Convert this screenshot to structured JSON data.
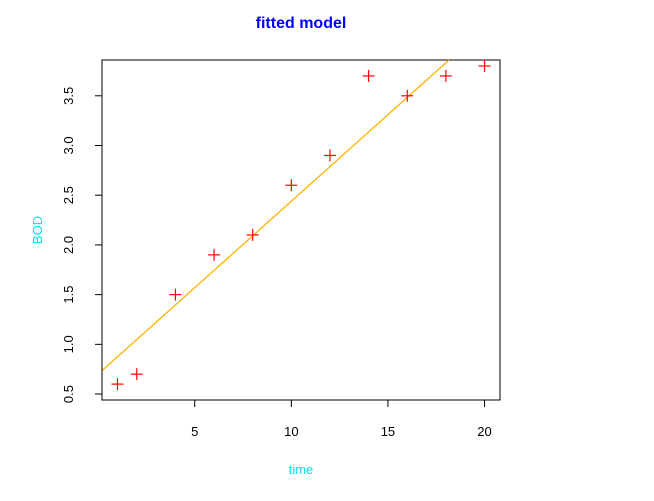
{
  "chart_data": {
    "type": "scatter",
    "title": "fitted model",
    "xlabel": "time",
    "ylabel": "BOD",
    "xlim": [
      0.2,
      20.8
    ],
    "ylim": [
      0.44,
      3.86
    ],
    "x_ticks": [
      5,
      10,
      15,
      20
    ],
    "y_ticks": [
      0.5,
      1.0,
      1.5,
      2.0,
      2.5,
      3.0,
      3.5
    ],
    "x_tick_labels": [
      "5",
      "10",
      "15",
      "20"
    ],
    "y_tick_labels": [
      "0.5",
      "1.0",
      "1.5",
      "2.0",
      "2.5",
      "3.0",
      "3.5"
    ],
    "grid": false,
    "series": [
      {
        "marker": "+",
        "color": "#ff0000",
        "x": [
          1,
          2,
          4,
          6,
          8,
          10,
          12,
          14,
          16,
          18,
          20
        ],
        "y": [
          0.6,
          0.7,
          1.5,
          1.9,
          2.1,
          2.6,
          2.9,
          3.7,
          3.5,
          3.7,
          3.8
        ]
      }
    ],
    "fit_line": {
      "color": "#ffb300",
      "intercept": 0.7,
      "slope": 0.174
    },
    "colors": {
      "title": "#0000ff",
      "axis_labels": "#00e5ee",
      "axes": "#000000"
    }
  }
}
